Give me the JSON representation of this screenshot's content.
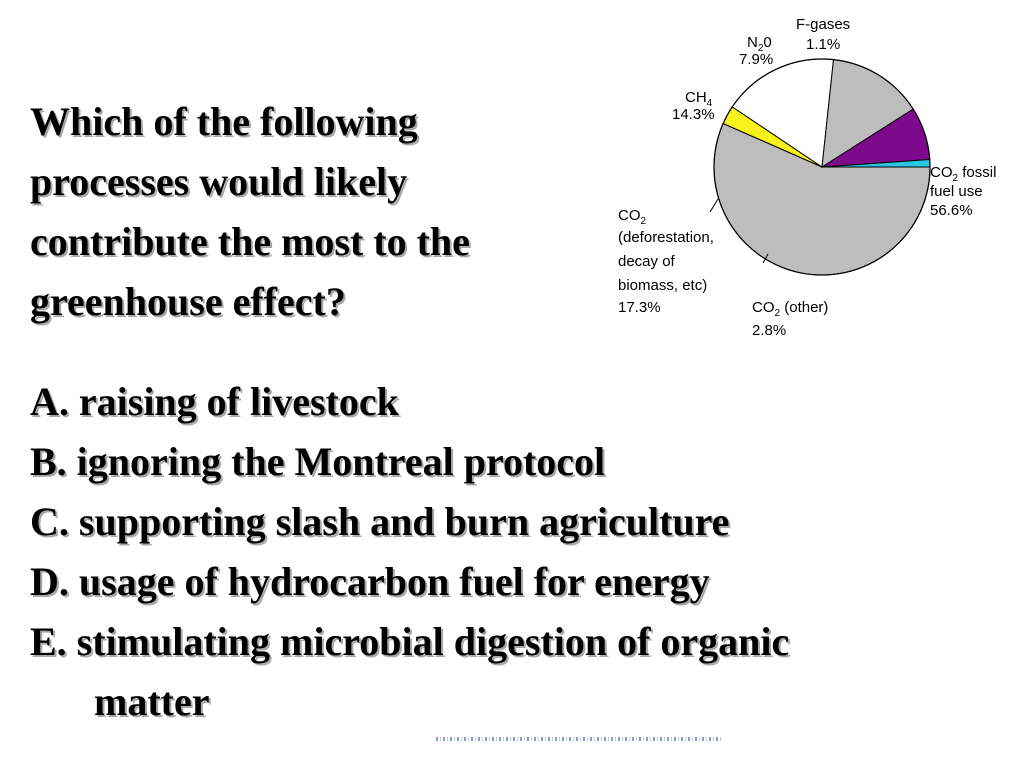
{
  "question": {
    "lines": [
      "Which of the following",
      "processes would likely",
      "contribute the most to the",
      "greenhouse effect?"
    ]
  },
  "choices": [
    {
      "text": "A. raising of livestock"
    },
    {
      "text": "B. ignoring the Montreal protocol"
    },
    {
      "text": "C. supporting slash and burn agriculture"
    },
    {
      "text": "D. usage of hydrocarbon fuel for energy"
    },
    {
      "text": "E. stimulating microbial digestion of organic",
      "continuation": "matter"
    }
  ],
  "chart_data": {
    "type": "pie",
    "title": "",
    "slices": [
      {
        "label": "CO2 fossil fuel use",
        "value": 56.6,
        "color": "#bdbdbd"
      },
      {
        "label": "CO2 (other)",
        "value": 2.8,
        "color": "#f7f21a"
      },
      {
        "label": "CO2 (deforestation, decay of biomass, etc)",
        "value": 17.3,
        "color": "#ffffff"
      },
      {
        "label": "CH4",
        "value": 14.3,
        "color": "#bdbdbd"
      },
      {
        "label": "N20",
        "value": 7.9,
        "color": "#7d0a8c"
      },
      {
        "label": "F-gases",
        "value": 1.1,
        "color": "#27c6e3"
      }
    ],
    "labels": {
      "co2_fossil": {
        "l1_pre": "CO",
        "l1_sub": "2",
        "l1_post": " fossil",
        "l2": "fuel use",
        "l3": "56.6%"
      },
      "co2_other": {
        "l1_pre": "CO",
        "l1_sub": "2",
        "l1_post": " (other)",
        "l2": "2.8%"
      },
      "co2_defor": {
        "l1_pre": "CO",
        "l1_sub": "2",
        "l2": "(deforestation,",
        "l3": "decay of",
        "l4": "biomass, etc)",
        "l5": "17.3%"
      },
      "ch4": {
        "l1_pre": "CH",
        "l1_sub": "4",
        "l2": "14.3%"
      },
      "n2o": {
        "l1_pre": "N",
        "l1_sub": "2",
        "l1_post": "0",
        "l2": "7.9%"
      },
      "fgases": {
        "l1": "F-gases",
        "l2": "1.1%"
      }
    }
  }
}
